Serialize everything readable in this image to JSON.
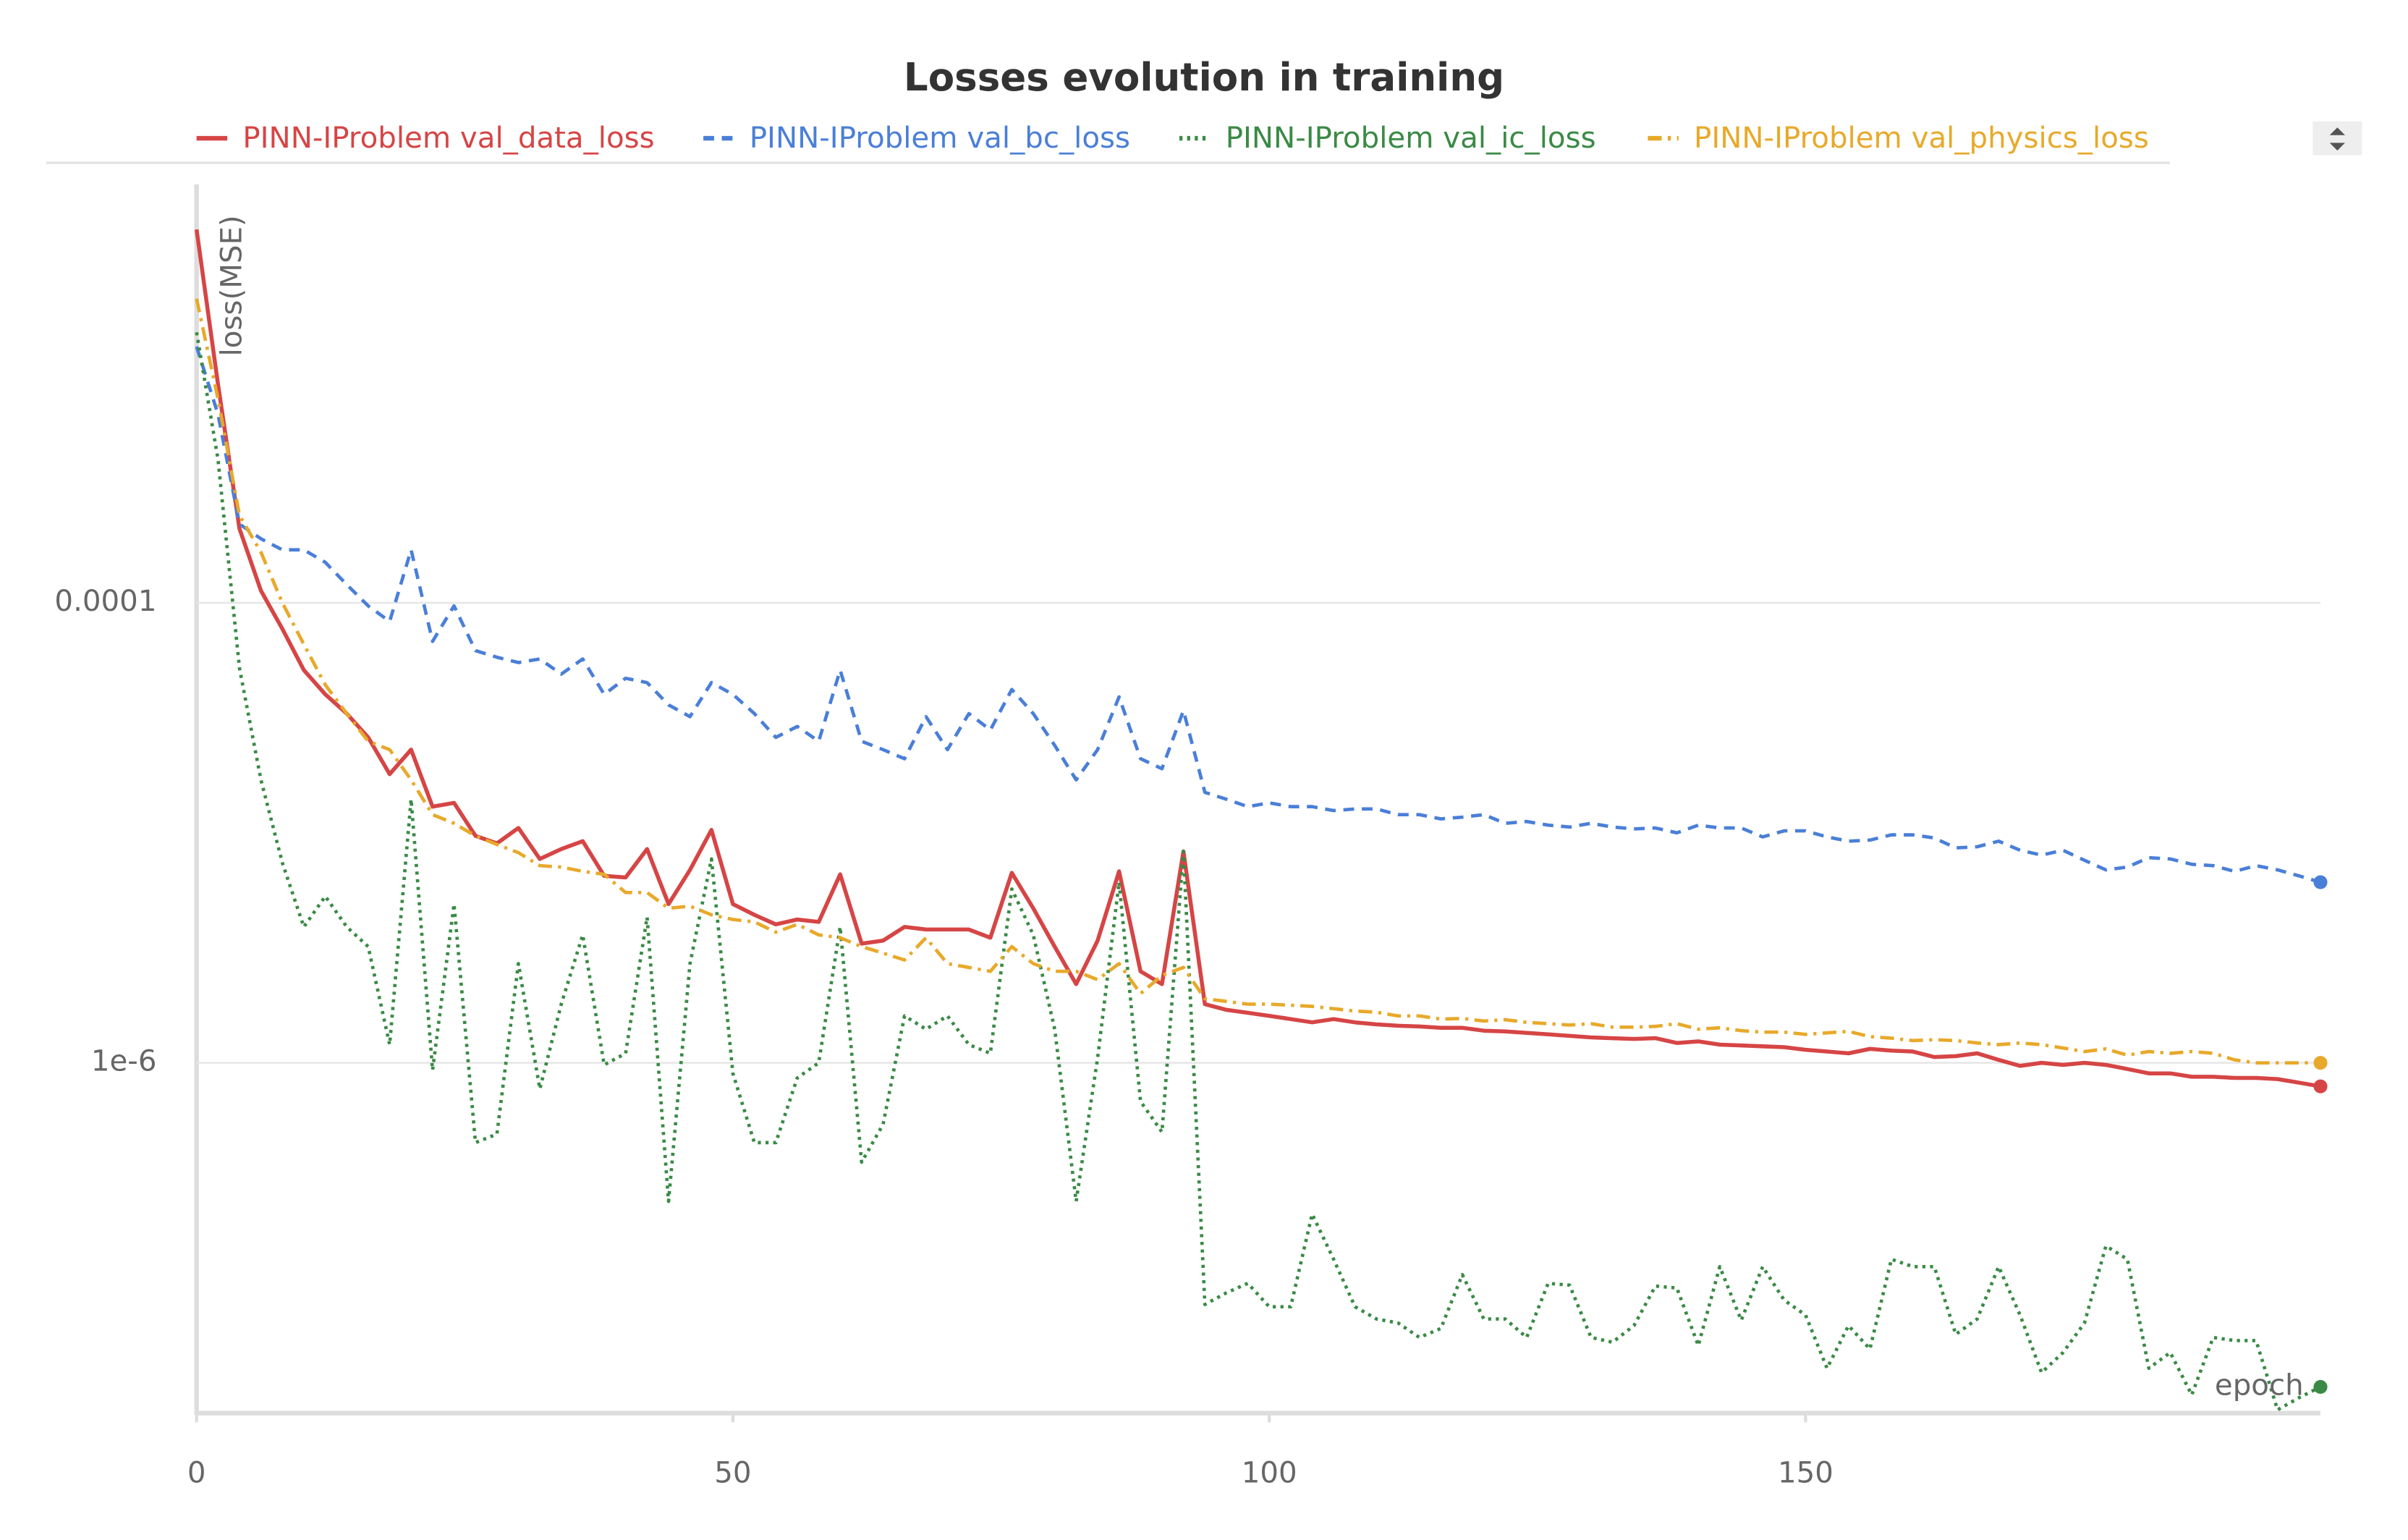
{
  "chart_data": {
    "type": "line",
    "title": "Losses evolution in training",
    "y_label": "loss(MSE)",
    "x_label": "epoch",
    "y_scale": "log",
    "grid": true,
    "legend": "top",
    "xlim": [
      0,
      198
    ],
    "xticks": [
      0,
      50,
      100,
      150
    ],
    "ylim": [
      3e-08,
      0.0066
    ],
    "yticks": [
      0.0001,
      {
        "value": 1e-06,
        "label": "1e-6"
      }
    ],
    "x": [
      0,
      2,
      4,
      6,
      8,
      10,
      12,
      14,
      16,
      18,
      20,
      22,
      24,
      26,
      28,
      30,
      32,
      34,
      36,
      38,
      40,
      42,
      44,
      46,
      48,
      50,
      52,
      54,
      56,
      58,
      60,
      62,
      64,
      66,
      68,
      70,
      72,
      74,
      76,
      78,
      80,
      82,
      84,
      86,
      88,
      90,
      92,
      94,
      96,
      98,
      100,
      102,
      104,
      106,
      108,
      110,
      112,
      114,
      116,
      118,
      120,
      122,
      124,
      126,
      128,
      130,
      132,
      134,
      136,
      138,
      140,
      142,
      144,
      146,
      148,
      150,
      152,
      154,
      156,
      158,
      160,
      162,
      164,
      166,
      168,
      170,
      172,
      174,
      176,
      178,
      180,
      182,
      184,
      186,
      188,
      190,
      192,
      194,
      196,
      198
    ],
    "series": [
      {
        "name": "PINN-IProblem val_data_loss",
        "color": "#d64545",
        "dash": "solid",
        "values": [
          0.0042,
          0.00089,
          0.00021,
          0.000113,
          7.7e-05,
          5.1e-05,
          4e-05,
          3.3e-05,
          2.6e-05,
          1.8e-05,
          2.3e-05,
          1.3e-05,
          1.35e-05,
          9.7e-06,
          9e-06,
          1.05e-05,
          7.7e-06,
          8.5e-06,
          9.2e-06,
          6.5e-06,
          6.4e-06,
          8.5e-06,
          4.9e-06,
          6.9e-06,
          1.03e-05,
          4.9e-06,
          4.4e-06,
          4e-06,
          4.2e-06,
          4.1e-06,
          6.6e-06,
          3.3e-06,
          3.4e-06,
          3.9e-06,
          3.8e-06,
          3.8e-06,
          3.8e-06,
          3.5e-06,
          6.7e-06,
          4.7e-06,
          3.2e-06,
          2.2e-06,
          3.4e-06,
          6.8e-06,
          2.5e-06,
          2.2e-06,
          8.3e-06,
          1.8e-06,
          1.7e-06,
          1.65e-06,
          1.6e-06,
          1.55e-06,
          1.5e-06,
          1.55e-06,
          1.5e-06,
          1.47e-06,
          1.45e-06,
          1.44e-06,
          1.42e-06,
          1.42e-06,
          1.38e-06,
          1.37e-06,
          1.35e-06,
          1.33e-06,
          1.31e-06,
          1.29e-06,
          1.28e-06,
          1.27e-06,
          1.28e-06,
          1.22e-06,
          1.24e-06,
          1.2e-06,
          1.19e-06,
          1.18e-06,
          1.17e-06,
          1.14e-06,
          1.12e-06,
          1.1e-06,
          1.15e-06,
          1.13e-06,
          1.12e-06,
          1.06e-06,
          1.07e-06,
          1.1e-06,
          1.03e-06,
          9.7e-07,
          1e-06,
          9.8e-07,
          1e-06,
          9.8e-07,
          9.4e-07,
          9e-07,
          9e-07,
          8.7e-07,
          8.7e-07,
          8.6e-07,
          8.6e-07,
          8.5e-07,
          8.2e-07,
          7.9e-07
        ]
      },
      {
        "name": "PINN-IProblem val_bc_loss",
        "color": "#4a7fd8",
        "dash": "dashed",
        "values": [
          0.0013,
          0.00066,
          0.00022,
          0.00019,
          0.00017,
          0.00017,
          0.00015,
          0.00012,
          9.7e-05,
          8.3e-05,
          0.00017,
          6.8e-05,
          9.7e-05,
          6.2e-05,
          5.8e-05,
          5.5e-05,
          5.7e-05,
          4.9e-05,
          5.7e-05,
          4e-05,
          4.7e-05,
          4.5e-05,
          3.6e-05,
          3.2e-05,
          4.5e-05,
          4e-05,
          3.3e-05,
          2.6e-05,
          2.9e-05,
          2.5e-05,
          5.1e-05,
          2.5e-05,
          2.3e-05,
          2.1e-05,
          3.2e-05,
          2.3e-05,
          3.3e-05,
          2.8e-05,
          4.2e-05,
          3.3e-05,
          2.4e-05,
          1.7e-05,
          2.3e-05,
          3.9e-05,
          2.1e-05,
          1.9e-05,
          3.4e-05,
          1.5e-05,
          1.4e-05,
          1.3e-05,
          1.35e-05,
          1.3e-05,
          1.3e-05,
          1.25e-05,
          1.27e-05,
          1.27e-05,
          1.2e-05,
          1.2e-05,
          1.15e-05,
          1.17e-05,
          1.2e-05,
          1.1e-05,
          1.12e-05,
          1.08e-05,
          1.06e-05,
          1.1e-05,
          1.06e-05,
          1.04e-05,
          1.05e-05,
          1e-05,
          1.08e-05,
          1.05e-05,
          1.05e-05,
          9.6e-06,
          1.02e-05,
          1.02e-05,
          9.6e-06,
          9.2e-06,
          9.3e-06,
          9.8e-06,
          9.8e-06,
          9.5e-06,
          8.6e-06,
          8.7e-06,
          9.2e-06,
          8.4e-06,
          8e-06,
          8.4e-06,
          7.6e-06,
          6.9e-06,
          7.1e-06,
          7.8e-06,
          7.7e-06,
          7.3e-06,
          7.2e-06,
          6.8e-06,
          7.2e-06,
          6.9e-06,
          6.5e-06,
          6.1e-06
        ]
      },
      {
        "name": "PINN-IProblem val_ic_loss",
        "color": "#3a8a45",
        "dash": "dotted",
        "values": [
          0.0015,
          0.00042,
          5.2e-05,
          1.7e-05,
          7.4e-06,
          3.9e-06,
          5.3e-06,
          3.9e-06,
          3.2e-06,
          1.2e-06,
          1.4e-05,
          9.3e-07,
          4.9e-06,
          4.5e-07,
          4.9e-07,
          2.7e-06,
          7.7e-07,
          1.8e-06,
          3.6e-06,
          9.8e-07,
          1.1e-06,
          4.3e-06,
          2.5e-07,
          2.7e-06,
          7.7e-06,
          9e-07,
          4.5e-07,
          4.5e-07,
          8.6e-07,
          1e-06,
          3.9e-06,
          3.7e-07,
          5.4e-07,
          1.6e-06,
          1.4e-06,
          1.6e-06,
          1.2e-06,
          1.1e-06,
          5.7e-06,
          3.6e-06,
          1.4e-06,
          2.5e-07,
          1.05e-06,
          6.1e-06,
          6.8e-07,
          5e-07,
          8.3e-06,
          8.9e-08,
          1e-07,
          1.1e-07,
          8.7e-08,
          8.7e-08,
          2.2e-07,
          1.4e-07,
          8.7e-08,
          7.7e-08,
          7.4e-08,
          6.4e-08,
          7e-08,
          1.2e-07,
          7.7e-08,
          7.7e-08,
          6.4e-08,
          1.1e-07,
          1.08e-07,
          6.4e-08,
          6.1e-08,
          7.2e-08,
          1.07e-07,
          1.05e-07,
          5.9e-08,
          1.3e-07,
          7.6e-08,
          1.3e-07,
          9.3e-08,
          8e-08,
          4.7e-08,
          7.2e-08,
          5.7e-08,
          1.4e-07,
          1.3e-07,
          1.3e-07,
          6.6e-08,
          7.7e-08,
          1.3e-07,
          8e-08,
          4.5e-08,
          5.5e-08,
          7.4e-08,
          1.6e-07,
          1.4e-07,
          4.7e-08,
          5.5e-08,
          3.6e-08,
          6.4e-08,
          6.2e-08,
          6.2e-08,
          3.1e-08,
          3.5e-08,
          3.9e-08
        ]
      },
      {
        "name": "PINN-IProblem val_physics_loss",
        "color": "#e8a92a",
        "dash": "dashdot",
        "values": [
          0.0021,
          0.00077,
          0.00024,
          0.000166,
          0.0001,
          6.6e-05,
          4.4e-05,
          3.3e-05,
          2.5e-05,
          2.3e-05,
          1.7e-05,
          1.2e-05,
          1.1e-05,
          9.7e-06,
          8.9e-06,
          8.2e-06,
          7.2e-06,
          7.1e-06,
          6.8e-06,
          6.6e-06,
          5.5e-06,
          5.5e-06,
          4.7e-06,
          4.8e-06,
          4.4e-06,
          4.2e-06,
          4.1e-06,
          3.7e-06,
          4e-06,
          3.6e-06,
          3.5e-06,
          3.2e-06,
          3e-06,
          2.8e-06,
          3.5e-06,
          2.7e-06,
          2.6e-06,
          2.5e-06,
          3.2e-06,
          2.7e-06,
          2.5e-06,
          2.5e-06,
          2.3e-06,
          2.7e-06,
          2e-06,
          2.4e-06,
          2.6e-06,
          1.9e-06,
          1.85e-06,
          1.8e-06,
          1.8e-06,
          1.78e-06,
          1.76e-06,
          1.72e-06,
          1.68e-06,
          1.66e-06,
          1.6e-06,
          1.6e-06,
          1.55e-06,
          1.56e-06,
          1.52e-06,
          1.54e-06,
          1.5e-06,
          1.48e-06,
          1.46e-06,
          1.48e-06,
          1.43e-06,
          1.43e-06,
          1.44e-06,
          1.48e-06,
          1.4e-06,
          1.42e-06,
          1.38e-06,
          1.36e-06,
          1.36e-06,
          1.33e-06,
          1.35e-06,
          1.37e-06,
          1.3e-06,
          1.28e-06,
          1.25e-06,
          1.26e-06,
          1.25e-06,
          1.22e-06,
          1.2e-06,
          1.22e-06,
          1.2e-06,
          1.16e-06,
          1.12e-06,
          1.15e-06,
          1.08e-06,
          1.12e-06,
          1.1e-06,
          1.12e-06,
          1.1e-06,
          1.03e-06,
          1e-06,
          1e-06,
          1e-06,
          1e-06
        ]
      }
    ]
  }
}
